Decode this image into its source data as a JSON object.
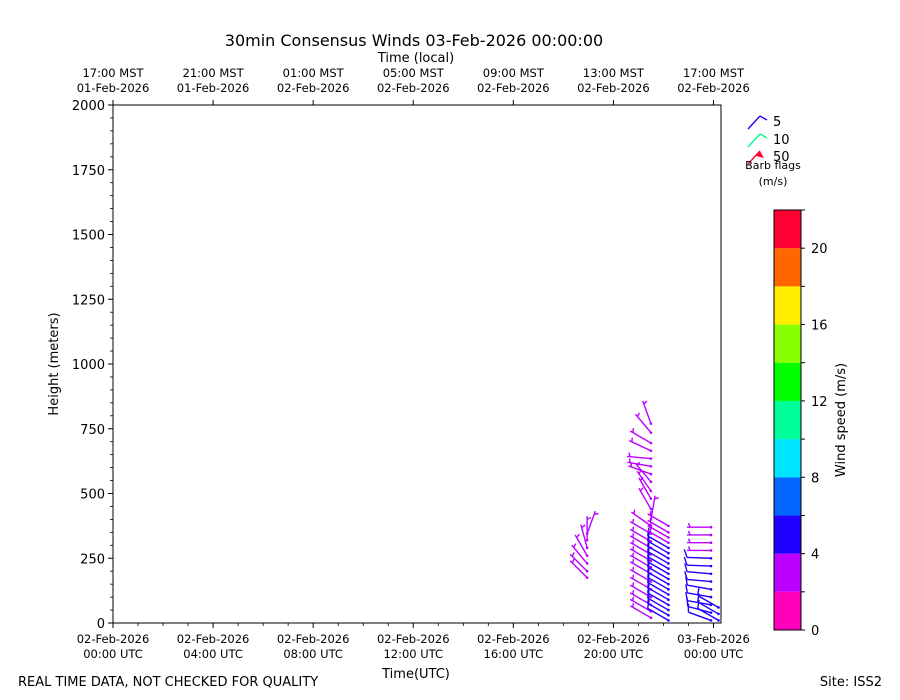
{
  "chart_data": {
    "type": "scatter",
    "title": "30min Consensus Winds 03-Feb-2026 00:00:00",
    "top_axis_label": "Time (local)",
    "xlabel": "Time(UTC)",
    "ylabel": "Height (meters)",
    "ylim": [
      0,
      2000
    ],
    "y_ticks": [
      0,
      250,
      500,
      750,
      1000,
      1250,
      1500,
      1750,
      2000
    ],
    "x_range_hours": [
      0,
      24.3
    ],
    "x_ticks_utc": [
      {
        "hour": 0,
        "line1": "02-Feb-2026",
        "line2": "00:00 UTC"
      },
      {
        "hour": 4,
        "line1": "02-Feb-2026",
        "line2": "04:00 UTC"
      },
      {
        "hour": 8,
        "line1": "02-Feb-2026",
        "line2": "08:00 UTC"
      },
      {
        "hour": 12,
        "line1": "02-Feb-2026",
        "line2": "12:00 UTC"
      },
      {
        "hour": 16,
        "line1": "02-Feb-2026",
        "line2": "16:00 UTC"
      },
      {
        "hour": 20,
        "line1": "02-Feb-2026",
        "line2": "20:00 UTC"
      },
      {
        "hour": 24,
        "line1": "03-Feb-2026",
        "line2": "00:00 UTC"
      }
    ],
    "x_ticks_local": [
      {
        "hour": 0,
        "line1": "17:00 MST",
        "line2": "01-Feb-2026"
      },
      {
        "hour": 4,
        "line1": "21:00 MST",
        "line2": "01-Feb-2026"
      },
      {
        "hour": 8,
        "line1": "01:00 MST",
        "line2": "02-Feb-2026"
      },
      {
        "hour": 12,
        "line1": "05:00 MST",
        "line2": "02-Feb-2026"
      },
      {
        "hour": 16,
        "line1": "09:00 MST",
        "line2": "02-Feb-2026"
      },
      {
        "hour": 20,
        "line1": "13:00 MST",
        "line2": "02-Feb-2026"
      },
      {
        "hour": 24,
        "line1": "17:00 MST",
        "line2": "02-Feb-2026"
      }
    ],
    "barb_legend": {
      "items": [
        {
          "label": "5",
          "color": "#2200ff"
        },
        {
          "label": "10",
          "color": "#00ff88"
        },
        {
          "label": "50",
          "color": "#ff0033"
        }
      ],
      "title_line1": "Barb flags",
      "title_line2": "(m/s)"
    },
    "colorbar": {
      "label": "Wind speed (m/s)",
      "min": 0,
      "max": 22,
      "tick_values": [
        0,
        4,
        8,
        12,
        16,
        20
      ],
      "bins": [
        {
          "from": 0,
          "to": 2,
          "color": "#ff00bb"
        },
        {
          "from": 2,
          "to": 4,
          "color": "#bb00ff"
        },
        {
          "from": 4,
          "to": 6,
          "color": "#2200ff"
        },
        {
          "from": 6,
          "to": 8,
          "color": "#0066ff"
        },
        {
          "from": 8,
          "to": 10,
          "color": "#00e5ff"
        },
        {
          "from": 10,
          "to": 12,
          "color": "#00ff99"
        },
        {
          "from": 12,
          "to": 14,
          "color": "#00ff00"
        },
        {
          "from": 14,
          "to": 16,
          "color": "#88ff00"
        },
        {
          "from": 16,
          "to": 18,
          "color": "#ffee00"
        },
        {
          "from": 18,
          "to": 20,
          "color": "#ff6600"
        },
        {
          "from": 20,
          "to": 22,
          "color": "#ff0033"
        }
      ]
    },
    "barbs": [
      {
        "t": 18.95,
        "h": 175,
        "speed": 3.0,
        "dir": 315
      },
      {
        "t": 18.95,
        "h": 200,
        "speed": 3.0,
        "dir": 315
      },
      {
        "t": 18.95,
        "h": 230,
        "speed": 3.0,
        "dir": 320
      },
      {
        "t": 18.95,
        "h": 260,
        "speed": 3.0,
        "dir": 330
      },
      {
        "t": 18.95,
        "h": 290,
        "speed": 3.0,
        "dir": 345
      },
      {
        "t": 18.95,
        "h": 320,
        "speed": 3.0,
        "dir": 0
      },
      {
        "t": 18.95,
        "h": 345,
        "speed": 3.0,
        "dir": 20
      },
      {
        "t": 21.5,
        "h": 20,
        "speed": 3.0,
        "dir": 300
      },
      {
        "t": 21.5,
        "h": 45,
        "speed": 3.0,
        "dir": 300
      },
      {
        "t": 21.5,
        "h": 70,
        "speed": 3.0,
        "dir": 300
      },
      {
        "t": 21.5,
        "h": 100,
        "speed": 3.0,
        "dir": 300
      },
      {
        "t": 21.5,
        "h": 130,
        "speed": 3.0,
        "dir": 300
      },
      {
        "t": 21.5,
        "h": 160,
        "speed": 3.0,
        "dir": 300
      },
      {
        "t": 21.5,
        "h": 190,
        "speed": 3.0,
        "dir": 300
      },
      {
        "t": 21.5,
        "h": 215,
        "speed": 3.0,
        "dir": 300
      },
      {
        "t": 21.5,
        "h": 240,
        "speed": 3.0,
        "dir": 300
      },
      {
        "t": 21.5,
        "h": 265,
        "speed": 3.0,
        "dir": 300
      },
      {
        "t": 21.5,
        "h": 290,
        "speed": 3.0,
        "dir": 300
      },
      {
        "t": 21.5,
        "h": 315,
        "speed": 3.0,
        "dir": 300
      },
      {
        "t": 21.5,
        "h": 345,
        "speed": 3.0,
        "dir": 300
      },
      {
        "t": 21.5,
        "h": 375,
        "speed": 3.0,
        "dir": 305
      },
      {
        "t": 21.5,
        "h": 400,
        "speed": 3.0,
        "dir": 10
      },
      {
        "t": 21.5,
        "h": 440,
        "speed": 3.0,
        "dir": 330
      },
      {
        "t": 21.5,
        "h": 480,
        "speed": 3.0,
        "dir": 330
      },
      {
        "t": 21.5,
        "h": 510,
        "speed": 3.0,
        "dir": 325
      },
      {
        "t": 21.5,
        "h": 545,
        "speed": 3.0,
        "dir": 320
      },
      {
        "t": 21.5,
        "h": 575,
        "speed": 3.0,
        "dir": 290
      },
      {
        "t": 21.5,
        "h": 605,
        "speed": 3.0,
        "dir": 280
      },
      {
        "t": 21.5,
        "h": 635,
        "speed": 3.0,
        "dir": 275
      },
      {
        "t": 21.5,
        "h": 665,
        "speed": 3.0,
        "dir": 295
      },
      {
        "t": 21.5,
        "h": 695,
        "speed": 3.0,
        "dir": 300
      },
      {
        "t": 21.5,
        "h": 735,
        "speed": 3.0,
        "dir": 320
      },
      {
        "t": 21.5,
        "h": 770,
        "speed": 3.0,
        "dir": 340
      },
      {
        "t": 22.2,
        "h": 10,
        "speed": 5.0,
        "dir": 300
      },
      {
        "t": 22.2,
        "h": 30,
        "speed": 5.0,
        "dir": 300
      },
      {
        "t": 22.2,
        "h": 50,
        "speed": 5.0,
        "dir": 300
      },
      {
        "t": 22.2,
        "h": 70,
        "speed": 5.0,
        "dir": 300
      },
      {
        "t": 22.2,
        "h": 90,
        "speed": 5.0,
        "dir": 300
      },
      {
        "t": 22.2,
        "h": 110,
        "speed": 5.0,
        "dir": 300
      },
      {
        "t": 22.2,
        "h": 130,
        "speed": 5.0,
        "dir": 300
      },
      {
        "t": 22.2,
        "h": 150,
        "speed": 5.0,
        "dir": 300
      },
      {
        "t": 22.2,
        "h": 170,
        "speed": 5.0,
        "dir": 300
      },
      {
        "t": 22.2,
        "h": 190,
        "speed": 5.0,
        "dir": 300
      },
      {
        "t": 22.2,
        "h": 210,
        "speed": 5.0,
        "dir": 300
      },
      {
        "t": 22.2,
        "h": 230,
        "speed": 5.0,
        "dir": 300
      },
      {
        "t": 22.2,
        "h": 250,
        "speed": 5.0,
        "dir": 300
      },
      {
        "t": 22.2,
        "h": 270,
        "speed": 5.0,
        "dir": 300
      },
      {
        "t": 22.2,
        "h": 290,
        "speed": 5.0,
        "dir": 300
      },
      {
        "t": 22.2,
        "h": 310,
        "speed": 3.0,
        "dir": 300
      },
      {
        "t": 22.2,
        "h": 330,
        "speed": 3.0,
        "dir": 300
      },
      {
        "t": 22.2,
        "h": 350,
        "speed": 3.0,
        "dir": 300
      },
      {
        "t": 22.2,
        "h": 375,
        "speed": 3.0,
        "dir": 300
      },
      {
        "t": 23.9,
        "h": 10,
        "speed": 5.0,
        "dir": 290
      },
      {
        "t": 23.9,
        "h": 40,
        "speed": 5.0,
        "dir": 285
      },
      {
        "t": 23.9,
        "h": 70,
        "speed": 5.0,
        "dir": 280
      },
      {
        "t": 23.9,
        "h": 100,
        "speed": 5.0,
        "dir": 280
      },
      {
        "t": 23.9,
        "h": 130,
        "speed": 5.0,
        "dir": 280
      },
      {
        "t": 23.9,
        "h": 160,
        "speed": 5.0,
        "dir": 275
      },
      {
        "t": 23.9,
        "h": 190,
        "speed": 5.0,
        "dir": 275
      },
      {
        "t": 23.9,
        "h": 220,
        "speed": 5.0,
        "dir": 272
      },
      {
        "t": 23.9,
        "h": 250,
        "speed": 5.0,
        "dir": 272
      },
      {
        "t": 23.9,
        "h": 280,
        "speed": 3.0,
        "dir": 270
      },
      {
        "t": 23.9,
        "h": 310,
        "speed": 3.0,
        "dir": 270
      },
      {
        "t": 23.9,
        "h": 340,
        "speed": 3.0,
        "dir": 270
      },
      {
        "t": 23.9,
        "h": 370,
        "speed": 3.0,
        "dir": 270
      },
      {
        "t": 24.2,
        "h": 10,
        "speed": 5.0,
        "dir": 300
      },
      {
        "t": 24.2,
        "h": 35,
        "speed": 5.0,
        "dir": 300
      },
      {
        "t": 24.2,
        "h": 60,
        "speed": 5.0,
        "dir": 300
      }
    ]
  },
  "footer": {
    "left_note": "REAL TIME DATA, NOT CHECKED FOR QUALITY",
    "site": "Site: ISS2"
  }
}
